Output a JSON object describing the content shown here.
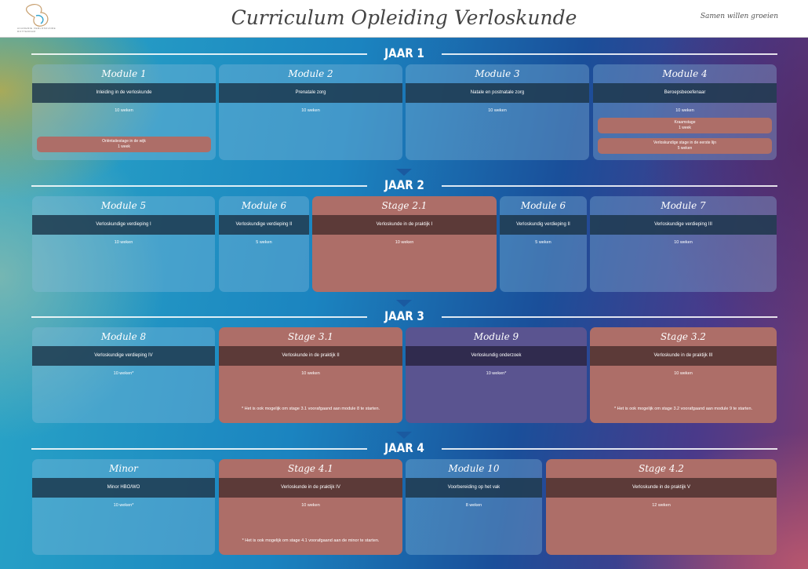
{
  "header": {
    "title": "Curriculum Opleiding Verloskunde",
    "tagline": "Samen willen groeien",
    "logo_text": "ACADEMIE VERLOSKUNDE ROTTERDAM"
  },
  "colors": {
    "stage": "#ad6e68",
    "band": "#1d3a4e",
    "research": "#5a5490"
  },
  "years": [
    {
      "label": "JAAR 1",
      "cards": [
        {
          "title": "Module 1",
          "subject": "Inleiding in de verloskunde",
          "duration": "10 weken",
          "kind": "mod",
          "subs": [
            {
              "name": "Oriëntatiestage in de wijk",
              "duration": "1 week"
            }
          ]
        },
        {
          "title": "Module 2",
          "subject": "Prenatale zorg",
          "duration": "10 weken",
          "kind": "mod"
        },
        {
          "title": "Module 3",
          "subject": "Natale en postnatale zorg",
          "duration": "10 weken",
          "kind": "mod"
        },
        {
          "title": "Module 4",
          "subject": "Beroepsbeoefenaar",
          "duration": "10 weken",
          "kind": "mod",
          "subs": [
            {
              "name": "Kraamstage",
              "duration": "1 week"
            },
            {
              "name": "Verloskundige stage in de eerste lijn",
              "duration": "5 weken"
            }
          ]
        }
      ]
    },
    {
      "label": "JAAR 2",
      "cards": [
        {
          "title": "Module 5",
          "subject": "Verloskundige verdieping I",
          "duration": "10 weken",
          "kind": "mod"
        },
        {
          "title": "Module 6",
          "subject": "Verloskundige verdieping II",
          "duration": "5 weken",
          "kind": "mod"
        },
        {
          "title": "Stage 2.1",
          "subject": "Verloskunde in de praktijk I",
          "duration": "10 weken",
          "kind": "stage"
        },
        {
          "title": "Module 6",
          "subject": "Verloskundig verdieping II",
          "duration": "5 weken",
          "kind": "mod"
        },
        {
          "title": "Module 7",
          "subject": "Verloskundige verdieping III",
          "duration": "10 weken",
          "kind": "mod"
        }
      ]
    },
    {
      "label": "JAAR 3",
      "cards": [
        {
          "title": "Module 8",
          "subject": "Verloskundige verdieping IV",
          "duration": "10 weken*",
          "kind": "mod"
        },
        {
          "title": "Stage 3.1",
          "subject": "Verloskunde in de praktijk II",
          "duration": "10 weken",
          "kind": "stage",
          "note": "* Het is ook mogelijk om stage 3.1 voorafgaand aan module 8 te starten."
        },
        {
          "title": "Module 9",
          "subject": "Verloskundig onderzoek",
          "duration": "10 weken*",
          "kind": "research"
        },
        {
          "title": "Stage 3.2",
          "subject": "Verloskunde in de praktijk III",
          "duration": "10 weken",
          "kind": "stage",
          "note": "* Het is ook mogelijk om stage 3.2 voorafgaand aan module 9 te starten."
        }
      ]
    },
    {
      "label": "JAAR 4",
      "cards": [
        {
          "title": "Minor",
          "subject": "Minor HBO/WO",
          "duration": "10 weken*",
          "kind": "mod"
        },
        {
          "title": "Stage 4.1",
          "subject": "Verloskunde in de praktijk IV",
          "duration": "10 weken",
          "kind": "stage",
          "note": "* Het is ook mogelijk om stage 4.1 voorafgaand aan de minor te starten."
        },
        {
          "title": "Module 10",
          "subject": "Voorbereiding op het vak",
          "duration": "8 weken",
          "kind": "mod"
        },
        {
          "title": "Stage 4.2",
          "subject": "Verloskunde in de praktijk V",
          "duration": "12 weken",
          "kind": "stage"
        }
      ]
    }
  ]
}
